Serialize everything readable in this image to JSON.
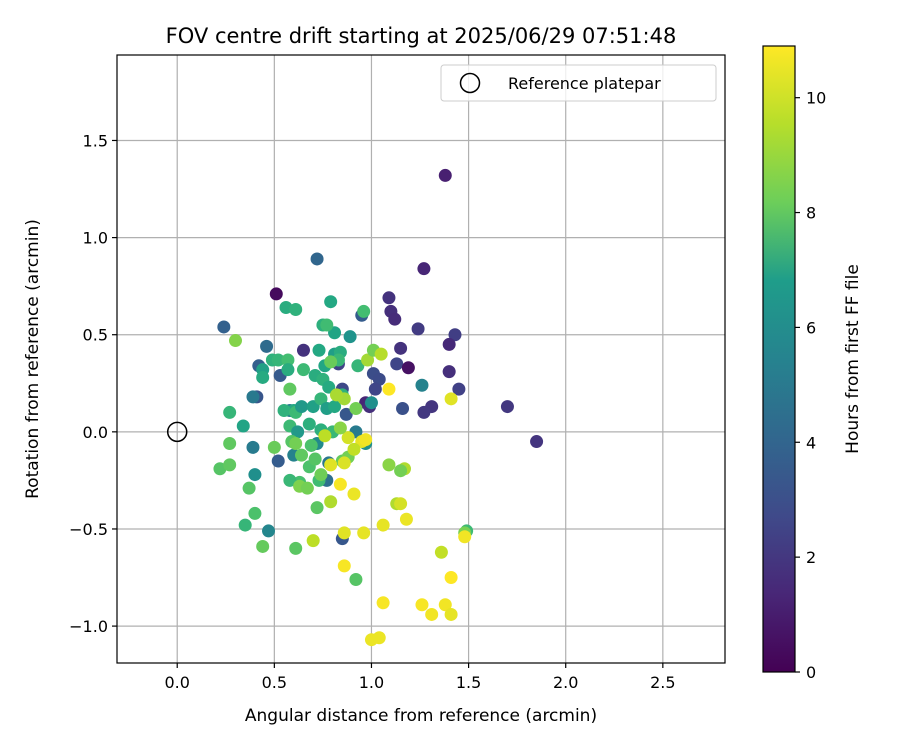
{
  "chart_data": {
    "type": "scatter",
    "title": "FOV centre drift starting at 2025/06/29 07:51:48",
    "xlabel": "Angular distance from reference (arcmin)",
    "ylabel": "Rotation from reference (arcmin)",
    "colorbar_label": "Hours from first FF file",
    "xlim": [
      -0.31,
      2.82
    ],
    "ylim": [
      -1.19,
      1.94
    ],
    "clim": [
      0,
      10.9
    ],
    "x_ticks": [
      "0.0",
      "0.5",
      "1.0",
      "1.5",
      "2.0",
      "2.5"
    ],
    "y_ticks": [
      "−1.0",
      "−0.5",
      "0.0",
      "0.5",
      "1.0",
      "1.5"
    ],
    "colorbar_ticks": [
      "0",
      "2",
      "4",
      "6",
      "8",
      "10"
    ],
    "grid": true,
    "colormap": "viridis",
    "legend": {
      "position": "top-right",
      "label": "Reference platepar"
    },
    "reference_point": [
      0.0,
      0.0
    ],
    "points": [
      [
        1.38,
        1.32,
        1.0
      ],
      [
        1.27,
        0.84,
        1.2
      ],
      [
        0.51,
        0.71,
        0.3
      ],
      [
        1.7,
        0.13,
        1.8
      ],
      [
        1.85,
        -0.05,
        1.7
      ],
      [
        1.09,
        0.69,
        1.6
      ],
      [
        1.1,
        0.62,
        1.5
      ],
      [
        1.12,
        0.58,
        1.4
      ],
      [
        1.24,
        0.53,
        1.9
      ],
      [
        1.43,
        0.5,
        2.0
      ],
      [
        1.4,
        0.45,
        1.3
      ],
      [
        1.15,
        0.43,
        1.6
      ],
      [
        1.13,
        0.35,
        2.3
      ],
      [
        1.19,
        0.33,
        0.5
      ],
      [
        1.4,
        0.31,
        1.5
      ],
      [
        1.45,
        0.22,
        2.1
      ],
      [
        1.01,
        0.3,
        2.6
      ],
      [
        1.04,
        0.27,
        2.5
      ],
      [
        1.02,
        0.22,
        2.3
      ],
      [
        1.31,
        0.13,
        1.7
      ],
      [
        1.27,
        0.1,
        1.8
      ],
      [
        1.16,
        0.12,
        2.7
      ],
      [
        0.97,
        0.15,
        1.2
      ],
      [
        0.99,
        0.13,
        1.5
      ],
      [
        0.95,
        0.6,
        3.2
      ],
      [
        0.72,
        0.89,
        3.6
      ],
      [
        0.24,
        0.54,
        3.4
      ],
      [
        0.46,
        0.44,
        3.8
      ],
      [
        0.42,
        0.34,
        3.3
      ],
      [
        0.53,
        0.29,
        3.1
      ],
      [
        0.41,
        0.18,
        2.9
      ],
      [
        0.39,
        0.18,
        4.4
      ],
      [
        0.58,
        0.11,
        4.6
      ],
      [
        0.65,
        0.42,
        1.6
      ],
      [
        0.83,
        0.35,
        2.2
      ],
      [
        0.85,
        0.22,
        2.4
      ],
      [
        0.87,
        0.09,
        3.0
      ],
      [
        0.52,
        -0.15,
        3.2
      ],
      [
        0.39,
        -0.08,
        4.5
      ],
      [
        0.47,
        -0.51,
        5.0
      ],
      [
        0.4,
        -0.22,
        5.4
      ],
      [
        0.85,
        -0.55,
        3.0
      ],
      [
        0.77,
        -0.25,
        4.0
      ],
      [
        0.78,
        -0.16,
        4.3
      ],
      [
        0.6,
        -0.12,
        4.8
      ],
      [
        0.72,
        -0.06,
        5.2
      ],
      [
        1.26,
        0.24,
        4.8
      ],
      [
        1.0,
        0.15,
        5.4
      ],
      [
        0.92,
        0.0,
        4.5
      ],
      [
        0.97,
        -0.06,
        5.5
      ],
      [
        0.56,
        0.64,
        6.8
      ],
      [
        0.61,
        0.63,
        7.0
      ],
      [
        0.79,
        0.67,
        6.6
      ],
      [
        0.81,
        0.51,
        6.4
      ],
      [
        0.89,
        0.49,
        5.6
      ],
      [
        0.75,
        0.55,
        6.9
      ],
      [
        0.77,
        0.55,
        7.5
      ],
      [
        0.81,
        0.4,
        6.1
      ],
      [
        0.84,
        0.41,
        6.8
      ],
      [
        0.73,
        0.42,
        6.6
      ],
      [
        0.93,
        0.34,
        7.2
      ],
      [
        0.76,
        0.34,
        6.5
      ],
      [
        0.44,
        0.32,
        6.2
      ],
      [
        0.44,
        0.28,
        6.7
      ],
      [
        0.49,
        0.37,
        7.0
      ],
      [
        0.52,
        0.37,
        7.2
      ],
      [
        0.57,
        0.37,
        7.6
      ],
      [
        0.57,
        0.32,
        6.8
      ],
      [
        0.65,
        0.32,
        7.4
      ],
      [
        0.71,
        0.29,
        6.8
      ],
      [
        0.75,
        0.27,
        7.0
      ],
      [
        0.78,
        0.23,
        6.7
      ],
      [
        0.58,
        0.22,
        8.2
      ],
      [
        0.6,
        0.11,
        6.6
      ],
      [
        0.55,
        0.11,
        7.0
      ],
      [
        0.61,
        0.1,
        7.4
      ],
      [
        0.64,
        0.13,
        5.9
      ],
      [
        0.7,
        0.13,
        6.2
      ],
      [
        0.74,
        0.17,
        7.2
      ],
      [
        0.77,
        0.12,
        6.1
      ],
      [
        0.81,
        0.13,
        6.6
      ],
      [
        0.85,
        0.19,
        7.0
      ],
      [
        0.27,
        0.1,
        7.2
      ],
      [
        0.34,
        0.03,
        6.4
      ],
      [
        0.58,
        0.03,
        7.4
      ],
      [
        0.62,
        0.0,
        5.9
      ],
      [
        0.68,
        0.04,
        6.9
      ],
      [
        0.74,
        0.01,
        6.9
      ],
      [
        0.8,
        0.0,
        7.3
      ],
      [
        0.69,
        -0.07,
        7.8
      ],
      [
        0.59,
        -0.05,
        8.0
      ],
      [
        0.27,
        -0.06,
        8.2
      ],
      [
        0.22,
        -0.19,
        8.0
      ],
      [
        0.27,
        -0.17,
        8.2
      ],
      [
        0.5,
        -0.08,
        8.4
      ],
      [
        0.64,
        -0.12,
        8.2
      ],
      [
        0.68,
        -0.18,
        7.8
      ],
      [
        0.73,
        -0.25,
        7.5
      ],
      [
        0.71,
        -0.14,
        8.0
      ],
      [
        0.85,
        -0.15,
        8.3
      ],
      [
        0.88,
        -0.13,
        8.6
      ],
      [
        0.74,
        -0.22,
        8.5
      ],
      [
        0.63,
        -0.26,
        7.7
      ],
      [
        0.58,
        -0.25,
        7.3
      ],
      [
        0.63,
        -0.28,
        8.8
      ],
      [
        0.67,
        -0.29,
        8.6
      ],
      [
        0.37,
        -0.29,
        8.0
      ],
      [
        0.72,
        -0.39,
        8.1
      ],
      [
        0.4,
        -0.42,
        7.8
      ],
      [
        0.35,
        -0.48,
        7.2
      ],
      [
        0.44,
        -0.59,
        8.3
      ],
      [
        0.61,
        -0.6,
        8.1
      ],
      [
        0.7,
        -0.56,
        9.8
      ],
      [
        0.92,
        -0.76,
        8.0
      ],
      [
        1.49,
        -0.51,
        7.4
      ],
      [
        1.48,
        -0.52,
        8.7
      ],
      [
        1.09,
        -0.17,
        9.0
      ],
      [
        1.17,
        -0.19,
        9.6
      ],
      [
        1.15,
        -0.2,
        8.6
      ],
      [
        1.13,
        -0.37,
        9.6
      ],
      [
        1.15,
        -0.37,
        10.2
      ],
      [
        1.18,
        -0.45,
        10.6
      ],
      [
        1.06,
        -0.48,
        10.5
      ],
      [
        0.96,
        -0.52,
        10.5
      ],
      [
        0.86,
        -0.52,
        10.4
      ],
      [
        0.86,
        -0.69,
        10.8
      ],
      [
        0.91,
        -0.32,
        10.6
      ],
      [
        0.84,
        -0.27,
        10.8
      ],
      [
        0.79,
        -0.36,
        9.6
      ],
      [
        0.86,
        -0.16,
        10.3
      ],
      [
        0.79,
        -0.17,
        10.4
      ],
      [
        0.95,
        -0.05,
        10.5
      ],
      [
        0.88,
        -0.03,
        10.2
      ],
      [
        0.91,
        -0.09,
        9.9
      ],
      [
        0.97,
        -0.04,
        10.7
      ],
      [
        0.76,
        -0.02,
        9.8
      ],
      [
        0.84,
        0.02,
        9.0
      ],
      [
        0.92,
        0.12,
        8.6
      ],
      [
        0.86,
        0.17,
        9.4
      ],
      [
        0.82,
        0.19,
        9.5
      ],
      [
        0.3,
        0.47,
        8.9
      ],
      [
        0.96,
        0.62,
        7.6
      ],
      [
        0.83,
        0.37,
        7.3
      ],
      [
        0.79,
        0.36,
        8.4
      ],
      [
        0.98,
        0.37,
        9.4
      ],
      [
        1.01,
        0.42,
        8.6
      ],
      [
        1.05,
        0.4,
        9.7
      ],
      [
        1.09,
        0.22,
        10.9
      ],
      [
        1.41,
        0.17,
        10.4
      ],
      [
        1.36,
        -0.62,
        9.9
      ],
      [
        1.41,
        -0.75,
        10.9
      ],
      [
        1.48,
        -0.54,
        10.7
      ],
      [
        1.06,
        -0.88,
        10.8
      ],
      [
        1.26,
        -0.89,
        10.8
      ],
      [
        1.31,
        -0.94,
        10.7
      ],
      [
        1.38,
        -0.89,
        10.7
      ],
      [
        1.41,
        -0.94,
        10.5
      ],
      [
        1.0,
        -1.07,
        10.6
      ],
      [
        1.04,
        -1.06,
        10.6
      ],
      [
        0.61,
        -0.06,
        8.6
      ]
    ]
  }
}
